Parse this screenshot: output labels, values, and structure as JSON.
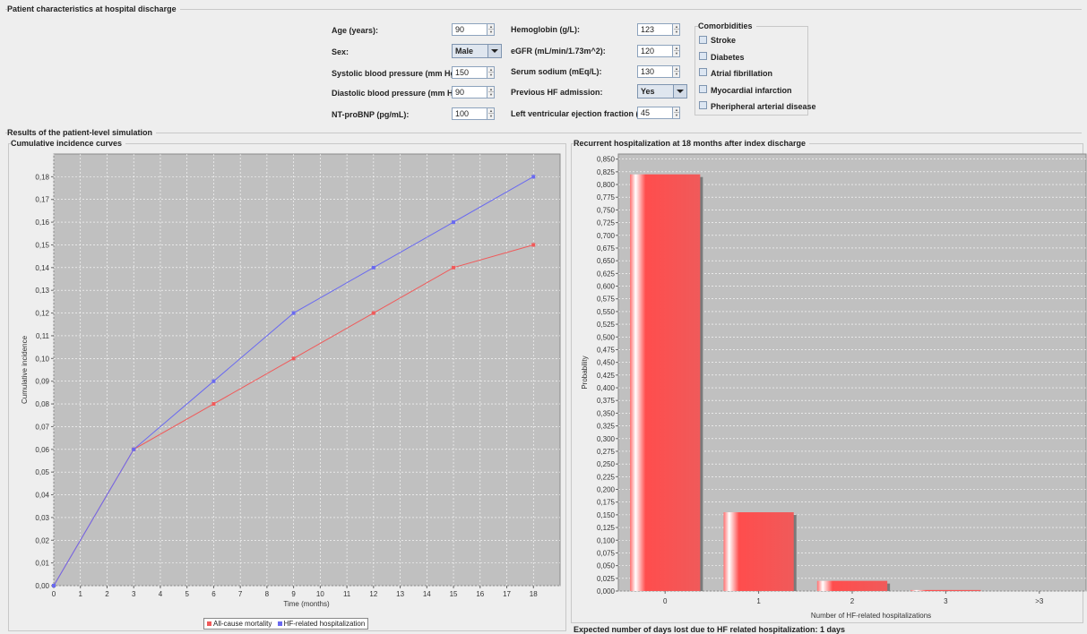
{
  "inputs_section": {
    "title": "Patient characteristics at hospital discharge",
    "fields": [
      {
        "label": "Age (years):",
        "value": "90"
      },
      {
        "label": "Sex:",
        "value": "Male"
      },
      {
        "label": "Systolic blood pressure (mm Hg):",
        "value": "150"
      },
      {
        "label": "Diastolic blood pressure (mm Hg):",
        "value": "90"
      },
      {
        "label": "NT-proBNP (pg/mL):",
        "value": "100"
      },
      {
        "label": "Hemoglobin (g/L):",
        "value": "123"
      },
      {
        "label": "eGFR (mL/min/1.73m^2):",
        "value": "120"
      },
      {
        "label": "Serum sodium (mEq/L):",
        "value": "130"
      },
      {
        "label": "Previous HF admission:",
        "value": "Yes"
      },
      {
        "label": "Left ventricular ejection fraction (%):",
        "value": "45"
      }
    ],
    "comorbidities": {
      "title": "Comorbidities",
      "items": [
        {
          "label": "Stroke",
          "checked": false
        },
        {
          "label": "Diabetes",
          "checked": false
        },
        {
          "label": "Atrial fibrillation",
          "checked": false
        },
        {
          "label": "Myocardial infarction",
          "checked": false
        },
        {
          "label": "Pheripheral arterial disease",
          "checked": false
        }
      ]
    }
  },
  "results_section": {
    "title": "Results of the patient-level simulation",
    "left_panel_title": "Cumulative incidence curves",
    "right_panel_title": "Recurrent hospitalization at 18 months after index discharge",
    "footer_text": "Expected number of days lost due to HF related hospitalization: 1 days"
  },
  "chart_data": [
    {
      "type": "line",
      "x": [
        0,
        3,
        6,
        9,
        12,
        15,
        18
      ],
      "xlabel": "Time (months)",
      "ylabel": "Cumulative incidence",
      "xlim": [
        0,
        19
      ],
      "ylim": [
        0,
        0.19
      ],
      "x_ticks": [
        "0",
        "1",
        "2",
        "3",
        "4",
        "5",
        "6",
        "7",
        "8",
        "9",
        "10",
        "11",
        "12",
        "13",
        "14",
        "15",
        "16",
        "17",
        "18"
      ],
      "y_ticks": [
        "0,00",
        "0,01",
        "0,02",
        "0,03",
        "0,04",
        "0,05",
        "0,06",
        "0,07",
        "0,08",
        "0,09",
        "0,10",
        "0,11",
        "0,12",
        "0,13",
        "0,14",
        "0,15",
        "0,16",
        "0,17",
        "0,18"
      ],
      "series": [
        {
          "name": "All-cause mortality",
          "color": "#f05a5a",
          "values": [
            0,
            0.06,
            0.08,
            0.1,
            0.12,
            0.14,
            0.15
          ]
        },
        {
          "name": "HF-related hospitalization",
          "color": "#6a6af0",
          "values": [
            0,
            0.06,
            0.09,
            0.12,
            0.14,
            0.16,
            0.18
          ]
        }
      ],
      "grid": true,
      "legend": "bottom-center"
    },
    {
      "type": "bar",
      "categories": [
        "0",
        "1",
        "2",
        "3",
        ">3"
      ],
      "values": [
        0.82,
        0.155,
        0.02,
        0.002,
        0
      ],
      "xlabel": "Number of HF-related hospitalizations",
      "ylabel": "Probability",
      "ylim": [
        0,
        0.86
      ],
      "y_ticks": [
        "0,000",
        "0,025",
        "0,050",
        "0,075",
        "0,100",
        "0,125",
        "0,150",
        "0,175",
        "0,200",
        "0,225",
        "0,250",
        "0,275",
        "0,300",
        "0,325",
        "0,350",
        "0,375",
        "0,400",
        "0,425",
        "0,450",
        "0,475",
        "0,500",
        "0,525",
        "0,550",
        "0,575",
        "0,600",
        "0,625",
        "0,650",
        "0,675",
        "0,700",
        "0,725",
        "0,750",
        "0,775",
        "0,800",
        "0,825",
        "0,850"
      ],
      "color": "#f05a5a",
      "grid": true
    }
  ]
}
